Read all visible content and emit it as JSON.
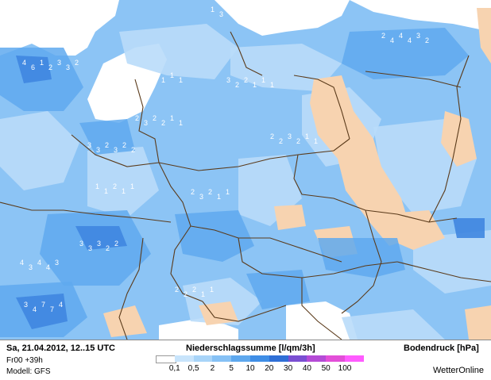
{
  "footer": {
    "date_line": "Sa, 21.04.2012, 12..15 UTC",
    "run_line": "Fr00 +39h",
    "model_line": "Modell: GFS",
    "legend_title": "Niederschlagssumme [l/qm/3h]",
    "pressure_label": "Bodendruck [hPa]",
    "brand": "WetterOnline"
  },
  "legend": {
    "swatches": [
      "#ffffff",
      "#c8e4fb",
      "#a8d4f8",
      "#86c1f5",
      "#5ea8ee",
      "#3f8ee6",
      "#2f6fd6",
      "#7a4fd2",
      "#b44bd6",
      "#e24fd8",
      "#ff5cff"
    ],
    "labels": [
      "0,1",
      "0,5",
      "2",
      "5",
      "10",
      "20",
      "30",
      "40",
      "50",
      "100"
    ]
  },
  "map": {
    "colors": {
      "land_base": "#8cc4f5",
      "light_precip": "#b9dcf9",
      "medium_precip": "#5fa9ef",
      "heavy_precip": "#3f86e0",
      "dry": "#f7d3b0",
      "sea": "#ffffff",
      "border": "#5a3a1a"
    },
    "grid_values": [
      [
        "1",
        "3",
        "3",
        "3",
        "3",
        "2"
      ],
      [
        "2",
        "4",
        "4",
        "4",
        "3",
        "2"
      ],
      [
        "4",
        "6",
        "1",
        "2",
        "3",
        "3",
        "2"
      ],
      [
        "3",
        "3",
        "2",
        "1",
        "1",
        "1"
      ],
      [
        "3",
        "2",
        "2",
        "1",
        "1",
        "1"
      ],
      [
        "2",
        "3",
        "2",
        "2",
        "1",
        "1"
      ],
      [
        "3",
        "3",
        "2",
        "3",
        "2",
        "2"
      ],
      [
        "2",
        "2",
        "3",
        "2",
        "1",
        "1"
      ],
      [
        "4",
        "3",
        "4",
        "4",
        "3"
      ],
      [
        "3",
        "4",
        "7",
        "7",
        "4"
      ],
      [
        "3",
        "3",
        "3",
        "2",
        "2"
      ],
      [
        "2",
        "3",
        "2",
        "1",
        "1"
      ],
      [
        "1",
        "1",
        "2",
        "1",
        "1"
      ],
      [
        "2",
        "2",
        "2",
        "1",
        "1"
      ]
    ]
  }
}
